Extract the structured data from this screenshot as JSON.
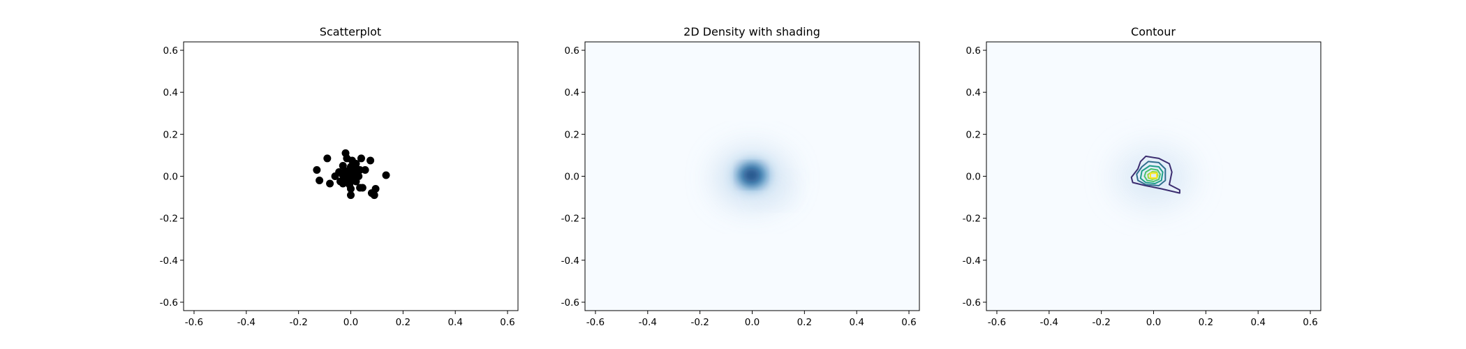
{
  "chart_data": [
    {
      "type": "scatter",
      "title": "Scatterplot",
      "xlim": [
        -0.64,
        0.64
      ],
      "ylim": [
        -0.64,
        0.64
      ],
      "xticks": [
        "-0.6",
        "-0.4",
        "-0.2",
        "0.0",
        "0.2",
        "0.4",
        "0.6"
      ],
      "yticks": [
        "-0.6",
        "-0.4",
        "-0.2",
        "0.0",
        "0.2",
        "0.4",
        "0.6"
      ],
      "grid": false,
      "marker_color": "#000000",
      "points": [
        [
          -0.02,
          0.11
        ],
        [
          -0.09,
          0.085
        ],
        [
          -0.015,
          0.085
        ],
        [
          0.005,
          0.075
        ],
        [
          0.04,
          0.085
        ],
        [
          0.075,
          0.075
        ],
        [
          -0.13,
          0.03
        ],
        [
          -0.03,
          0.05
        ],
        [
          0.0,
          0.045
        ],
        [
          0.02,
          0.04
        ],
        [
          0.035,
          0.03
        ],
        [
          0.055,
          0.03
        ],
        [
          -0.045,
          0.02
        ],
        [
          -0.02,
          0.025
        ],
        [
          -0.005,
          0.015
        ],
        [
          0.01,
          0.02
        ],
        [
          0.025,
          0.015
        ],
        [
          0.135,
          0.005
        ],
        [
          -0.03,
          0.005
        ],
        [
          -0.015,
          0.0
        ],
        [
          0.0,
          0.005
        ],
        [
          0.015,
          -0.005
        ],
        [
          0.03,
          0.0
        ],
        [
          -0.12,
          -0.02
        ],
        [
          -0.08,
          -0.035
        ],
        [
          -0.04,
          -0.025
        ],
        [
          -0.02,
          -0.015
        ],
        [
          0.005,
          -0.02
        ],
        [
          0.02,
          -0.025
        ],
        [
          -0.005,
          -0.04
        ],
        [
          0.035,
          -0.055
        ],
        [
          0.045,
          -0.055
        ],
        [
          0.0,
          -0.06
        ],
        [
          0.095,
          -0.06
        ],
        [
          0.08,
          -0.08
        ],
        [
          0.09,
          -0.09
        ],
        [
          0.0,
          -0.09
        ],
        [
          -0.03,
          -0.035
        ],
        [
          0.02,
          0.06
        ],
        [
          -0.06,
          0.0
        ]
      ]
    },
    {
      "type": "heatmap",
      "title": "2D Density with shading",
      "xlim": [
        -0.64,
        0.64
      ],
      "ylim": [
        -0.64,
        0.64
      ],
      "xticks": [
        "-0.6",
        "-0.4",
        "-0.2",
        "0.0",
        "0.2",
        "0.4",
        "0.6"
      ],
      "yticks": [
        "-0.6",
        "-0.4",
        "-0.2",
        "0.0",
        "0.2",
        "0.4",
        "0.6"
      ],
      "colormap": "Blues",
      "background_color": "#f7fbff",
      "peak_color": "#08306b",
      "peak": [
        0.0,
        0.005
      ]
    },
    {
      "type": "contour",
      "title": "Contour",
      "xlim": [
        -0.64,
        0.64
      ],
      "ylim": [
        -0.64,
        0.64
      ],
      "xticks": [
        "-0.6",
        "-0.4",
        "-0.2",
        "0.0",
        "0.2",
        "0.4",
        "0.6"
      ],
      "yticks": [
        "-0.6",
        "-0.4",
        "-0.2",
        "0.0",
        "0.2",
        "0.4",
        "0.6"
      ],
      "colormap": "viridis",
      "background_color": "#f7fbff",
      "peak": [
        0.0,
        0.005
      ],
      "levels": [
        {
          "color": "#3b2c6f",
          "points": [
            [
              -0.03,
              0.095
            ],
            [
              0.02,
              0.085
            ],
            [
              0.06,
              0.06
            ],
            [
              0.07,
              0.02
            ],
            [
              0.06,
              -0.04
            ],
            [
              0.1,
              -0.065
            ],
            [
              0.1,
              -0.08
            ],
            [
              0.03,
              -0.06
            ],
            [
              -0.03,
              -0.045
            ],
            [
              -0.08,
              -0.03
            ],
            [
              -0.085,
              -0.005
            ],
            [
              -0.06,
              0.035
            ],
            [
              -0.05,
              0.07
            ]
          ]
        },
        {
          "color": "#2f6d8e",
          "points": [
            [
              -0.02,
              0.07
            ],
            [
              0.02,
              0.065
            ],
            [
              0.045,
              0.035
            ],
            [
              0.045,
              -0.02
            ],
            [
              0.02,
              -0.045
            ],
            [
              -0.03,
              -0.04
            ],
            [
              -0.06,
              -0.02
            ],
            [
              -0.065,
              0.01
            ],
            [
              -0.045,
              0.045
            ]
          ]
        },
        {
          "color": "#1f9e89",
          "points": [
            [
              -0.015,
              0.05
            ],
            [
              0.02,
              0.045
            ],
            [
              0.035,
              0.02
            ],
            [
              0.03,
              -0.02
            ],
            [
              0.005,
              -0.035
            ],
            [
              -0.03,
              -0.03
            ],
            [
              -0.05,
              -0.01
            ],
            [
              -0.045,
              0.025
            ]
          ]
        },
        {
          "color": "#49c16d",
          "points": [
            [
              -0.01,
              0.035
            ],
            [
              0.015,
              0.03
            ],
            [
              0.025,
              0.01
            ],
            [
              0.02,
              -0.015
            ],
            [
              0.0,
              -0.025
            ],
            [
              -0.025,
              -0.02
            ],
            [
              -0.035,
              0.0
            ],
            [
              -0.03,
              0.02
            ]
          ]
        },
        {
          "color": "#9fd938",
          "points": [
            [
              -0.005,
              0.022
            ],
            [
              0.012,
              0.02
            ],
            [
              0.016,
              0.005
            ],
            [
              0.012,
              -0.01
            ],
            [
              -0.005,
              -0.015
            ],
            [
              -0.02,
              -0.008
            ],
            [
              -0.022,
              0.008
            ]
          ]
        },
        {
          "color": "#fde725",
          "points": [
            [
              -0.012,
              0.014
            ],
            [
              0.012,
              0.014
            ],
            [
              0.012,
              -0.008
            ],
            [
              -0.012,
              -0.008
            ]
          ]
        }
      ]
    }
  ]
}
